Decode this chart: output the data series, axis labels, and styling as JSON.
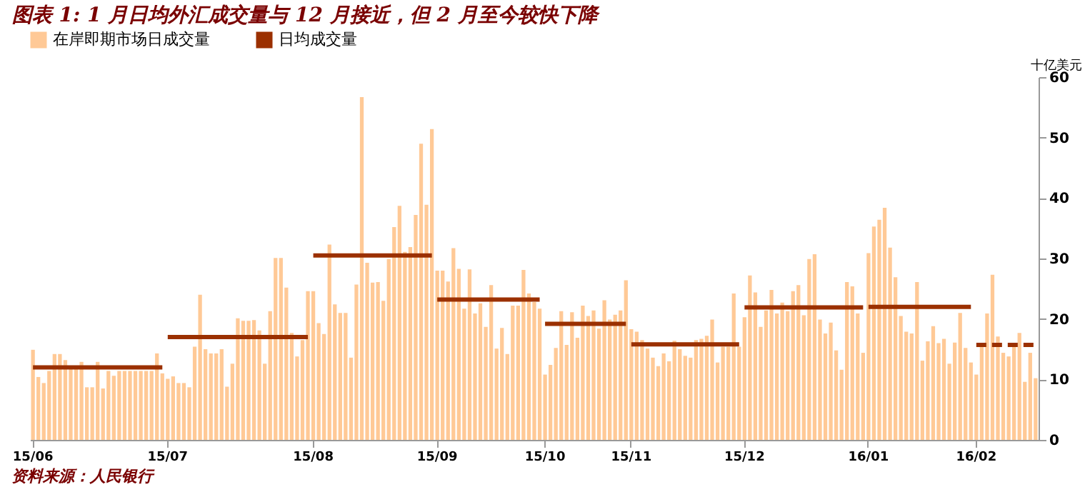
{
  "chart_data": {
    "type": "bar",
    "title": "图表 1: 1 月日均外汇成交量与 12 月接近，但 2 月至今较快下降",
    "ylabel": "十亿美元",
    "categories": [
      "15/06",
      null,
      null,
      null,
      null,
      null,
      null,
      null,
      null,
      null,
      null,
      null,
      null,
      null,
      null,
      null,
      null,
      null,
      null,
      null,
      null,
      null,
      null,
      null,
      null,
      "15/07",
      null,
      null,
      null,
      null,
      null,
      null,
      null,
      null,
      null,
      null,
      null,
      null,
      null,
      null,
      null,
      null,
      null,
      null,
      null,
      null,
      null,
      null,
      null,
      null,
      null,
      null,
      "15/08",
      null,
      null,
      null,
      null,
      null,
      null,
      null,
      null,
      null,
      null,
      null,
      null,
      null,
      null,
      null,
      null,
      null,
      null,
      null,
      null,
      null,
      null,
      "15/09",
      null,
      null,
      null,
      null,
      null,
      null,
      null,
      null,
      null,
      null,
      null,
      null,
      null,
      null,
      null,
      null,
      null,
      null,
      null,
      "15/10",
      null,
      null,
      null,
      null,
      null,
      null,
      null,
      null,
      null,
      null,
      null,
      null,
      null,
      null,
      null,
      "15/11",
      null,
      null,
      null,
      null,
      null,
      null,
      null,
      null,
      null,
      null,
      null,
      null,
      null,
      null,
      null,
      null,
      null,
      null,
      null,
      null,
      "15/12",
      null,
      null,
      null,
      null,
      null,
      null,
      null,
      null,
      null,
      null,
      null,
      null,
      null,
      null,
      null,
      null,
      null,
      null,
      null,
      null,
      null,
      null,
      "16/01",
      null,
      null,
      null,
      null,
      null,
      null,
      null,
      null,
      null,
      null,
      null,
      null,
      null,
      null,
      null,
      null,
      null,
      null,
      null,
      "16/02",
      null,
      null,
      null,
      null,
      null,
      null,
      null,
      null,
      null,
      null,
      null
    ],
    "series": [
      {
        "name": "在岸即期市场日成交量",
        "color": "#ffc996",
        "values": [
          14.9,
          10.4,
          9.4,
          11.4,
          14.2,
          14.2,
          13.2,
          11.8,
          11.8,
          12.9,
          8.7,
          8.7,
          12.9,
          8.5,
          11.4,
          10.6,
          11.4,
          11.4,
          11.4,
          11.4,
          11.4,
          11.4,
          11.4,
          14.3,
          11.0,
          10.1,
          10.5,
          9.4,
          9.4,
          8.7,
          15.4,
          24,
          15,
          14.3,
          14.3,
          15,
          8.8,
          12.6,
          20.1,
          19.7,
          19.7,
          19.8,
          18.1,
          12.6,
          21.3,
          30.1,
          30.1,
          25.2,
          17.7,
          13.8,
          16.5,
          24.6,
          24.6,
          19.3,
          17.5,
          32.3,
          22.4,
          21,
          21,
          13.6,
          25.7,
          56.7,
          29.3,
          26,
          26.1,
          23,
          29.9,
          35.2,
          38.7,
          31.1,
          31.9,
          37.2,
          49,
          38.9,
          51.4,
          28,
          28,
          26.2,
          31.7,
          28.3,
          21.7,
          28.2,
          20.9,
          22.6,
          18.7,
          25.6,
          15.1,
          18.5,
          14.2,
          22.2,
          22.2,
          28.1,
          24.2,
          22.8,
          21.7,
          10.8,
          12.4,
          15.2,
          21.3,
          15.7,
          21.1,
          16.9,
          22.2,
          20.5,
          21.4,
          18.4,
          23.1,
          19.9,
          20.7,
          21.4,
          26.4,
          18.3,
          17.9,
          16.5,
          15.1,
          13.6,
          12.2,
          14.3,
          13,
          16.4,
          15,
          13.9,
          13.6,
          16.5,
          16.7,
          17.2,
          19.9,
          12.8,
          15.4,
          15.4,
          24.2,
          15.4,
          20.3,
          27.2,
          24.4,
          18.7,
          21.4,
          24.8,
          20.9,
          22.7,
          21.3,
          24.6,
          25.6,
          20.6,
          29.9,
          30.7,
          19.9,
          17.6,
          19.4,
          14.8,
          11.6,
          26.1,
          25.4,
          20.9,
          14.4,
          30.9,
          35.3,
          36.4,
          38.4,
          31.8,
          26.9,
          20.5,
          17.9,
          17.6,
          26.1,
          13.1,
          16.3,
          18.8,
          16,
          16.7,
          12.6,
          16.1,
          21,
          15.2,
          12.8,
          10.8,
          15.5,
          20.9,
          27.3,
          17.1,
          14.4,
          13.8,
          15.5,
          17.7,
          9.6,
          14.4,
          10.2
        ]
      },
      {
        "name": "日均成交量",
        "type": "line",
        "color": "#9b3000",
        "line_style": "solid",
        "values": [
          12,
          12,
          12,
          12,
          12,
          12,
          12,
          12,
          12,
          12,
          12,
          12,
          12,
          12,
          12,
          12,
          12,
          12,
          12,
          12,
          12,
          12,
          12,
          12,
          12,
          17,
          17,
          17,
          17,
          17,
          17,
          17,
          17,
          17,
          17,
          17,
          17,
          17,
          17,
          17,
          17,
          17,
          17,
          17,
          17,
          17,
          17,
          17,
          17,
          17,
          17,
          17,
          30.5,
          30.5,
          30.5,
          30.5,
          30.5,
          30.5,
          30.5,
          30.5,
          30.5,
          30.5,
          30.5,
          30.5,
          30.5,
          30.5,
          30.5,
          30.5,
          30.5,
          30.5,
          30.5,
          30.5,
          30.5,
          30.5,
          30.5,
          23.2,
          23.2,
          23.2,
          23.2,
          23.2,
          23.2,
          23.2,
          23.2,
          23.2,
          23.2,
          23.2,
          23.2,
          23.2,
          23.2,
          23.2,
          23.2,
          23.2,
          23.2,
          23.2,
          23.2,
          19.2,
          19.2,
          19.2,
          19.2,
          19.2,
          19.2,
          19.2,
          19.2,
          19.2,
          19.2,
          19.2,
          19.2,
          19.2,
          19.2,
          19.2,
          19.2,
          15.8,
          15.8,
          15.8,
          15.8,
          15.8,
          15.8,
          15.8,
          15.8,
          15.8,
          15.8,
          15.8,
          15.8,
          15.8,
          15.8,
          15.8,
          15.8,
          15.8,
          15.8,
          15.8,
          15.8,
          15.8,
          21.9,
          21.9,
          21.9,
          21.9,
          21.9,
          21.9,
          21.9,
          21.9,
          21.9,
          21.9,
          21.9,
          21.9,
          21.9,
          21.9,
          21.9,
          21.9,
          21.9,
          21.9,
          21.9,
          21.9,
          21.9,
          21.9,
          21.9,
          22,
          22,
          22,
          22,
          22,
          22,
          22,
          22,
          22,
          22,
          22,
          22,
          22,
          22,
          22,
          22,
          22,
          22,
          22,
          22,
          null,
          null,
          null,
          null,
          null,
          null,
          null,
          null,
          null,
          null,
          null,
          null
        ]
      },
      {
        "type": "line",
        "color": "#9b3000",
        "line_style": "dashed",
        "values": [
          null,
          null,
          null,
          null,
          null,
          null,
          null,
          null,
          null,
          null,
          null,
          null,
          null,
          null,
          null,
          null,
          null,
          null,
          null,
          null,
          null,
          null,
          null,
          null,
          null,
          null,
          null,
          null,
          null,
          null,
          null,
          null,
          null,
          null,
          null,
          null,
          null,
          null,
          null,
          null,
          null,
          null,
          null,
          null,
          null,
          null,
          null,
          null,
          null,
          null,
          null,
          null,
          null,
          null,
          null,
          null,
          null,
          null,
          null,
          null,
          null,
          null,
          null,
          null,
          null,
          null,
          null,
          null,
          null,
          null,
          null,
          null,
          null,
          null,
          null,
          null,
          null,
          null,
          null,
          null,
          null,
          null,
          null,
          null,
          null,
          null,
          null,
          null,
          null,
          null,
          null,
          null,
          null,
          null,
          null,
          null,
          null,
          null,
          null,
          null,
          null,
          null,
          null,
          null,
          null,
          null,
          null,
          null,
          null,
          null,
          null,
          null,
          null,
          null,
          null,
          null,
          null,
          null,
          null,
          null,
          null,
          null,
          null,
          null,
          null,
          null,
          null,
          null,
          null,
          null,
          null,
          null,
          null,
          null,
          null,
          null,
          null,
          null,
          null,
          null,
          null,
          null,
          null,
          null,
          null,
          null,
          null,
          null,
          null,
          null,
          null,
          null,
          null,
          null,
          null,
          null,
          null,
          null,
          null,
          null,
          null,
          null,
          null,
          null,
          null,
          null,
          null,
          null,
          null,
          null,
          null,
          null,
          null,
          null,
          null,
          15.7,
          15.7,
          15.7,
          15.7,
          15.7,
          15.7,
          15.7,
          15.7,
          15.7,
          15.7,
          15.7,
          15.7
        ]
      }
    ],
    "ylim": [
      0,
      60
    ],
    "yticks": [
      0,
      10,
      20,
      30,
      40,
      50,
      60
    ],
    "grid": false,
    "legend": "top",
    "annotations": [
      "资料来源：人民银行"
    ]
  }
}
